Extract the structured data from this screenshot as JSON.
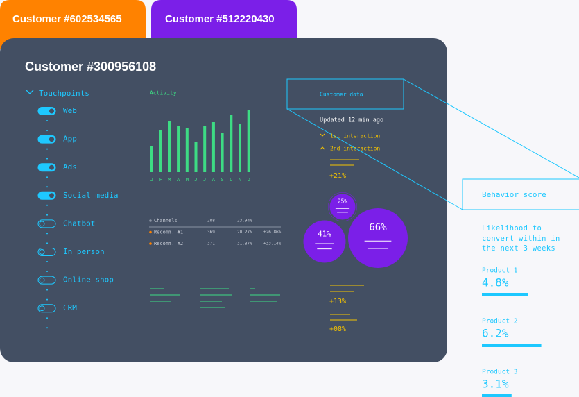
{
  "tabs": [
    "Customer #602534565",
    "Customer #512220430"
  ],
  "card": {
    "title": "Customer #300956108",
    "touchpoints": {
      "label": "Touchpoints",
      "items": [
        {
          "label": "Web",
          "on": true
        },
        {
          "label": "App",
          "on": true
        },
        {
          "label": "Ads",
          "on": true
        },
        {
          "label": "Social media",
          "on": true
        },
        {
          "label": "Chatbot",
          "on": false
        },
        {
          "label": "In person",
          "on": false
        },
        {
          "label": "Online shop",
          "on": false
        },
        {
          "label": "CRM",
          "on": false
        }
      ]
    }
  },
  "chart_data": {
    "type": "bar",
    "title": "Activity",
    "categories": [
      "J",
      "F",
      "M",
      "A",
      "M",
      "J",
      "J",
      "A",
      "S",
      "O",
      "N",
      "D"
    ],
    "values": [
      38,
      60,
      73,
      66,
      64,
      44,
      66,
      72,
      56,
      83,
      70,
      90
    ],
    "color": "#3ddc84"
  },
  "table": {
    "rows": [
      [
        "Channels",
        "288",
        "23.94%"
      ],
      [
        "Recomm. #1",
        "369",
        "20.27%",
        "+26.86%"
      ],
      [
        "Recomm. #2",
        "371",
        "31.87%",
        "+33.14%"
      ]
    ]
  },
  "bubbles": {
    "values": [
      25,
      41,
      66
    ],
    "value_labels": [
      "25%",
      "41%",
      "66%"
    ]
  },
  "customer_data": {
    "label": "Customer data",
    "updated": "Updated 12 min ago",
    "interactions": [
      "1st interaction",
      "2nd interaction"
    ],
    "changes": [
      "+21%",
      "+13%",
      "+08%"
    ]
  },
  "behavior": {
    "label": "Behavior score",
    "description": "Likelihood to convert within in the next 3 weeks",
    "products": [
      {
        "name": "Product 1",
        "value": 4.8,
        "label": "4.8%"
      },
      {
        "name": "Product 2",
        "value": 6.2,
        "label": "6.2%"
      },
      {
        "name": "Product 3",
        "value": 3.1,
        "label": "3.1%"
      }
    ]
  }
}
